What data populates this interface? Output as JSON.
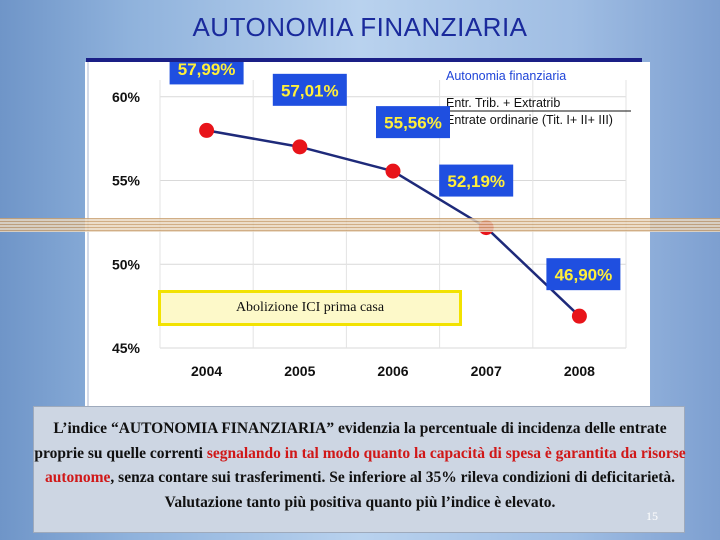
{
  "slide": {
    "title": "AUTONOMIA FINANZIARIA",
    "page_number": "15"
  },
  "description": {
    "part1": "L’indice “AUTONOMIA FINANZIARIA” evidenzia la percentuale di incidenza delle entrate proprie su quelle correnti ",
    "part2_red": "segnalando in tal modo quanto la capacità di spesa è garantita da risorse autonome",
    "part3": ", senza contare sui trasferimenti. Se inferiore al 35% rileva condizioni di deficitarietà. Valutazione tanto più positiva quanto più l’indice è elevato."
  },
  "annotation": {
    "text": "Abolizione ICI prima casa"
  },
  "colors": {
    "title": "#1a2a9c",
    "label_box": "#1f4fe0",
    "marker": "#e8141a",
    "line": "#1e2a7a",
    "annotation_border": "#f2e200",
    "highlight_text": "#d01818"
  },
  "chart_data": {
    "type": "line",
    "title": "Autonomia finanziaria",
    "subtitle_lines": [
      "Entr. Trib. + Extratrib",
      "Entrate ordinarie (Tit. I+ II+ III)"
    ],
    "categories": [
      "2004",
      "2005",
      "2006",
      "2007",
      "2008"
    ],
    "series": [
      {
        "name": "",
        "values": [
          57.99,
          57.01,
          55.56,
          52.19,
          46.9
        ]
      }
    ],
    "data_labels": [
      "57,99%",
      "57,01%",
      "55,56%",
      "52,19%",
      "46,90%"
    ],
    "y_ticks": [
      45,
      50,
      55,
      60
    ],
    "y_tick_labels": [
      "45%",
      "50%",
      "55%",
      "60%"
    ],
    "ylim": [
      45,
      61
    ],
    "grid": true
  }
}
